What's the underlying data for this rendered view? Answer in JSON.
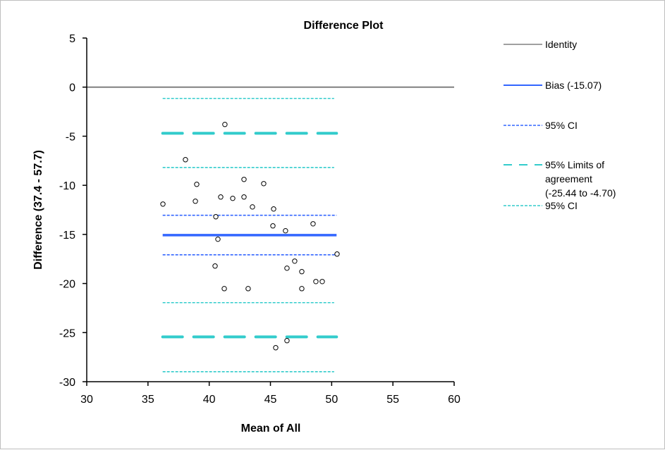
{
  "chart_data": {
    "type": "scatter",
    "title": "Difference Plot",
    "xlabel": "Mean of All",
    "ylabel": "Difference (37.4 - 57.7)",
    "xlim": [
      30,
      60
    ],
    "ylim": [
      -30,
      5
    ],
    "xticks": [
      30,
      35,
      40,
      45,
      50,
      55,
      60
    ],
    "yticks": [
      5,
      0,
      -5,
      -10,
      -15,
      -20,
      -25,
      -30
    ],
    "grid": false,
    "legend_position": "right",
    "colors": {
      "identity": "#808080",
      "bias": "#3366ff",
      "limits": "#33cccc",
      "points": "#000000"
    },
    "points": [
      {
        "x": 41.28,
        "y": -3.8
      },
      {
        "x": 38.06,
        "y": -7.39
      },
      {
        "x": 38.98,
        "y": -9.9
      },
      {
        "x": 36.22,
        "y": -11.91
      },
      {
        "x": 38.87,
        "y": -11.62
      },
      {
        "x": 42.84,
        "y": -9.4
      },
      {
        "x": 44.45,
        "y": -9.83
      },
      {
        "x": 40.94,
        "y": -11.19
      },
      {
        "x": 41.92,
        "y": -11.33
      },
      {
        "x": 42.84,
        "y": -11.19
      },
      {
        "x": 43.53,
        "y": -12.2
      },
      {
        "x": 45.26,
        "y": -12.41
      },
      {
        "x": 40.54,
        "y": -13.2
      },
      {
        "x": 45.2,
        "y": -14.13
      },
      {
        "x": 46.23,
        "y": -14.63
      },
      {
        "x": 48.48,
        "y": -13.92
      },
      {
        "x": 40.71,
        "y": -15.49
      },
      {
        "x": 50.44,
        "y": -17.0
      },
      {
        "x": 46.98,
        "y": -17.72
      },
      {
        "x": 46.35,
        "y": -18.44
      },
      {
        "x": 47.56,
        "y": -18.79
      },
      {
        "x": 40.48,
        "y": -18.22
      },
      {
        "x": 41.23,
        "y": -20.52
      },
      {
        "x": 43.18,
        "y": -20.52
      },
      {
        "x": 47.56,
        "y": -20.52
      },
      {
        "x": 48.71,
        "y": -19.8
      },
      {
        "x": 49.23,
        "y": -19.8
      },
      {
        "x": 46.35,
        "y": -25.82
      },
      {
        "x": 45.43,
        "y": -26.54
      }
    ],
    "lines": [
      {
        "name": "identity",
        "style": "solid-gray",
        "y": 0,
        "x_range": [
          30,
          60
        ]
      },
      {
        "name": "bias",
        "style": "solid-blue",
        "y": -15.07,
        "x_range": [
          36.2,
          50.4
        ]
      },
      {
        "name": "bias-ci-upper",
        "style": "dotted-blue",
        "y": -13.05,
        "x_range": [
          36.2,
          50.4
        ]
      },
      {
        "name": "bias-ci-lower",
        "style": "dotted-blue",
        "y": -17.08,
        "x_range": [
          36.2,
          50.4
        ]
      },
      {
        "name": "loa-upper",
        "style": "dashed-teal",
        "y": -4.7,
        "x_range": [
          36.2,
          50.4
        ]
      },
      {
        "name": "loa-lower",
        "style": "dashed-teal",
        "y": -25.44,
        "x_range": [
          36.2,
          50.4
        ]
      },
      {
        "name": "loa-upper-ci-upper",
        "style": "dotted-teal",
        "y": -1.15,
        "x_range": [
          36.2,
          50.2
        ]
      },
      {
        "name": "loa-upper-ci-lower",
        "style": "dotted-teal",
        "y": -8.18,
        "x_range": [
          36.2,
          50.2
        ]
      },
      {
        "name": "loa-lower-ci-upper",
        "style": "dotted-teal",
        "y": -21.95,
        "x_range": [
          36.2,
          50.2
        ]
      },
      {
        "name": "loa-lower-ci-lower",
        "style": "dotted-teal",
        "y": -28.98,
        "x_range": [
          36.2,
          50.2
        ]
      }
    ],
    "legend": [
      {
        "label": "Identity",
        "style": "solid-gray"
      },
      {
        "label": "Bias (-15.07)",
        "style": "solid-blue"
      },
      {
        "label": "95% CI",
        "style": "dotted-blue"
      },
      {
        "label": [
          "95% Limits of",
          "agreement",
          "(-25.44 to -4.70)"
        ],
        "style": "dashed-teal"
      },
      {
        "label": "95% CI",
        "style": "dotted-teal"
      }
    ]
  }
}
